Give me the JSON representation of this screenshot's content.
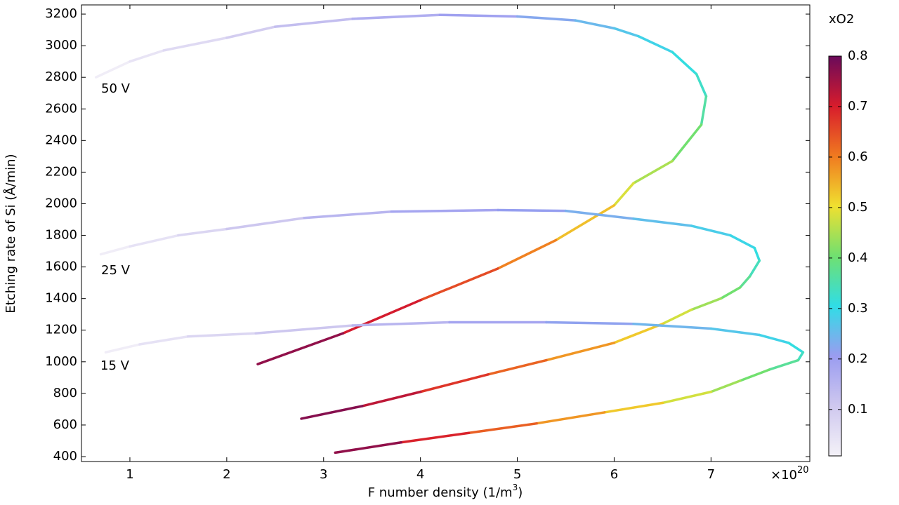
{
  "chart_data": {
    "type": "line",
    "xlabel": [
      "F number density (1/m",
      "3",
      ")"
    ],
    "x_multiplier": [
      "×10",
      "20"
    ],
    "ylabel": "Etching rate of Si (Å/min)",
    "xlim": [
      0.5,
      8.02
    ],
    "ylim": [
      369,
      3258
    ],
    "xticks": [
      1,
      2,
      3,
      4,
      5,
      6,
      7
    ],
    "yticks": [
      400,
      600,
      800,
      1000,
      1200,
      1400,
      1600,
      1800,
      2000,
      2200,
      2400,
      2600,
      2800,
      3000,
      3200
    ],
    "grid": false,
    "colorbar": {
      "label": "xO2",
      "lim": [
        0.008,
        0.8
      ],
      "ticks": [
        0.1,
        0.2,
        0.3,
        0.4,
        0.5,
        0.6,
        0.7,
        0.8
      ],
      "colors": [
        "#f4f2f8",
        "#cfc8ef",
        "#9a9cf0",
        "#30dde6",
        "#70e070",
        "#f0e030",
        "#f07a20",
        "#d81c2c",
        "#6a0a5a"
      ]
    },
    "series": [
      {
        "name": "50 V",
        "x": [
          0.65,
          1,
          1.35,
          2,
          2.5,
          3.3,
          4.2,
          5,
          5.6,
          6,
          6.25,
          6.6,
          6.85,
          6.95,
          6.9,
          6.6,
          6.2,
          6,
          5.4,
          4.8,
          4,
          3.2,
          2.32
        ],
        "values": [
          2800,
          2900,
          2970,
          3050,
          3120,
          3170,
          3195,
          3185,
          3160,
          3110,
          3060,
          2960,
          2820,
          2680,
          2500,
          2270,
          2130,
          1990,
          1770,
          1590,
          1390,
          1180,
          985
        ],
        "color_values": [
          0.01,
          0.03,
          0.05,
          0.08,
          0.11,
          0.15,
          0.18,
          0.21,
          0.24,
          0.26,
          0.28,
          0.3,
          0.32,
          0.34,
          0.38,
          0.43,
          0.47,
          0.5,
          0.57,
          0.62,
          0.68,
          0.73,
          0.8
        ]
      },
      {
        "name": "25 V",
        "x": [
          0.7,
          1,
          1.5,
          2,
          2.8,
          3.7,
          4.8,
          5.5,
          6.2,
          6.8,
          7.2,
          7.45,
          7.5,
          7.4,
          7.3,
          7.1,
          6.8,
          6.5,
          6,
          5.3,
          4.7,
          4,
          3.4,
          2.77
        ],
        "values": [
          1680,
          1730,
          1800,
          1840,
          1910,
          1950,
          1960,
          1955,
          1905,
          1860,
          1800,
          1720,
          1640,
          1540,
          1470,
          1400,
          1330,
          1240,
          1120,
          1010,
          920,
          810,
          720,
          640
        ],
        "color_values": [
          0.01,
          0.03,
          0.06,
          0.09,
          0.13,
          0.17,
          0.2,
          0.22,
          0.25,
          0.27,
          0.29,
          0.3,
          0.32,
          0.36,
          0.39,
          0.42,
          0.46,
          0.5,
          0.55,
          0.6,
          0.65,
          0.7,
          0.75,
          0.8
        ]
      },
      {
        "name": "15 V",
        "x": [
          0.75,
          1.1,
          1.6,
          2.3,
          3.3,
          4.3,
          5.3,
          6.2,
          7,
          7.5,
          7.8,
          7.95,
          7.9,
          7.6,
          7.3,
          7,
          6.5,
          5.9,
          5.2,
          4.5,
          3.8,
          3.12
        ],
        "values": [
          1060,
          1110,
          1160,
          1180,
          1230,
          1250,
          1250,
          1240,
          1210,
          1170,
          1120,
          1060,
          1010,
          950,
          880,
          810,
          740,
          680,
          610,
          550,
          490,
          425
        ],
        "color_values": [
          0.01,
          0.03,
          0.06,
          0.09,
          0.13,
          0.17,
          0.2,
          0.23,
          0.26,
          0.28,
          0.3,
          0.32,
          0.35,
          0.39,
          0.42,
          0.46,
          0.5,
          0.55,
          0.6,
          0.66,
          0.73,
          0.8
        ]
      }
    ]
  }
}
